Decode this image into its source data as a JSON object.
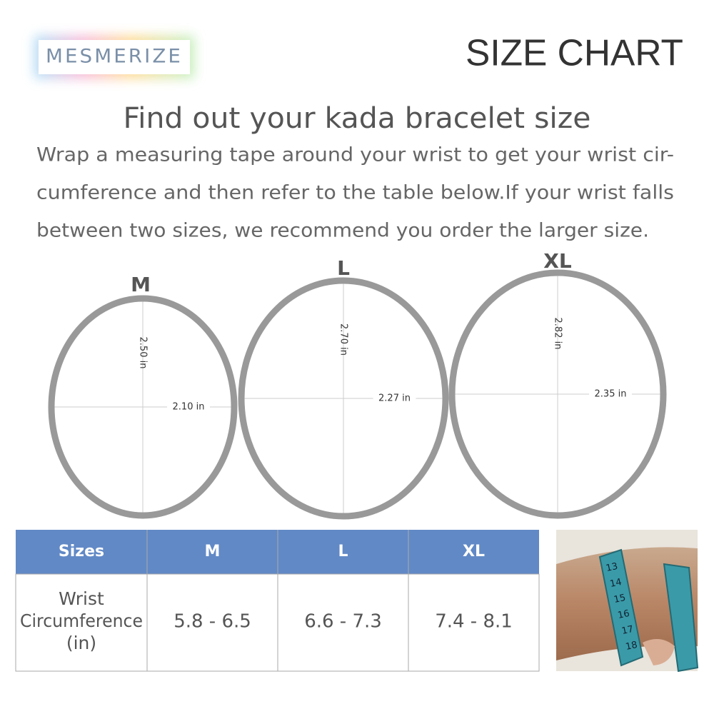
{
  "brand": "MESMERIZE",
  "title": "SIZE CHART",
  "heading": "Find out your kada bracelet size",
  "instructions": [
    "Wrap a measuring tape around your wrist to get your wrist cir-",
    "cumference and then refer to the table below.If your wrist falls",
    "between two sizes, we recommend you order the larger size."
  ],
  "bracelets": [
    {
      "label": "M",
      "height": "2.50 in",
      "width": "2.10 in"
    },
    {
      "label": "L",
      "height": "2.70 in",
      "width": "2.27 in"
    },
    {
      "label": "XL",
      "height": "2.82 in",
      "width": "2.35 in"
    }
  ],
  "table": {
    "header": [
      "Sizes",
      "M",
      "L",
      "XL"
    ],
    "rows": [
      [
        "Wrist Circumference (in)",
        "5.8 - 6.5",
        "6.6 - 7.3",
        "7.4 - 8.1"
      ]
    ]
  },
  "photo": {
    "tape_marks": [
      "13",
      "14",
      "15",
      "16",
      "17",
      "18"
    ]
  }
}
